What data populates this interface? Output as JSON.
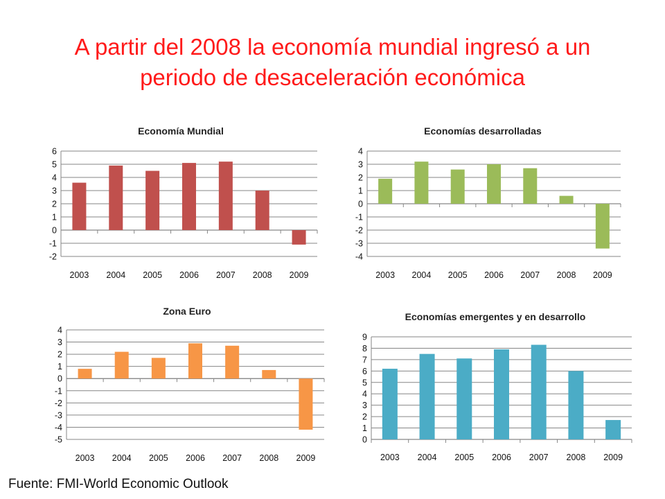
{
  "slide": {
    "title_line1": "A partir del 2008 la economía mundial ingresó a un",
    "title_line2": "periodo de desaceleración económica",
    "source": "Fuente: FMI-World Economic Outlook"
  },
  "chart_data": [
    {
      "type": "bar",
      "title": "Economía Mundial",
      "categories": [
        "2003",
        "2004",
        "2005",
        "2006",
        "2007",
        "2008",
        "2009"
      ],
      "values": [
        3.6,
        4.9,
        4.5,
        5.1,
        5.2,
        3.0,
        -1.1
      ],
      "ylim": [
        -2,
        6
      ],
      "ystep": 1,
      "grid": true,
      "color": "#c0504d",
      "xlabel": "",
      "ylabel": ""
    },
    {
      "type": "bar",
      "title": "Economías  desarrolladas",
      "categories": [
        "2003",
        "2004",
        "2005",
        "2006",
        "2007",
        "2008",
        "2009"
      ],
      "values": [
        1.9,
        3.2,
        2.6,
        3.0,
        2.7,
        0.6,
        -3.4
      ],
      "ylim": [
        -4,
        4
      ],
      "ystep": 1,
      "grid": true,
      "color": "#9bbb59",
      "xlabel": "",
      "ylabel": ""
    },
    {
      "type": "bar",
      "title": "Zona Euro",
      "categories": [
        "2003",
        "2004",
        "2005",
        "2006",
        "2007",
        "2008",
        "2009"
      ],
      "values": [
        0.8,
        2.2,
        1.7,
        2.9,
        2.7,
        0.7,
        -4.2
      ],
      "ylim": [
        -5,
        4
      ],
      "ystep": 1,
      "grid": true,
      "color": "#f79646",
      "xlabel": "",
      "ylabel": ""
    },
    {
      "type": "bar",
      "title": "Economías emergentes y en desarrollo",
      "categories": [
        "2003",
        "2004",
        "2005",
        "2006",
        "2007",
        "2008",
        "2009"
      ],
      "values": [
        6.2,
        7.5,
        7.1,
        7.9,
        8.3,
        6.0,
        1.7
      ],
      "ylim": [
        0,
        9
      ],
      "ystep": 1,
      "grid": true,
      "color": "#4bacc6",
      "xlabel": "",
      "ylabel": ""
    }
  ]
}
